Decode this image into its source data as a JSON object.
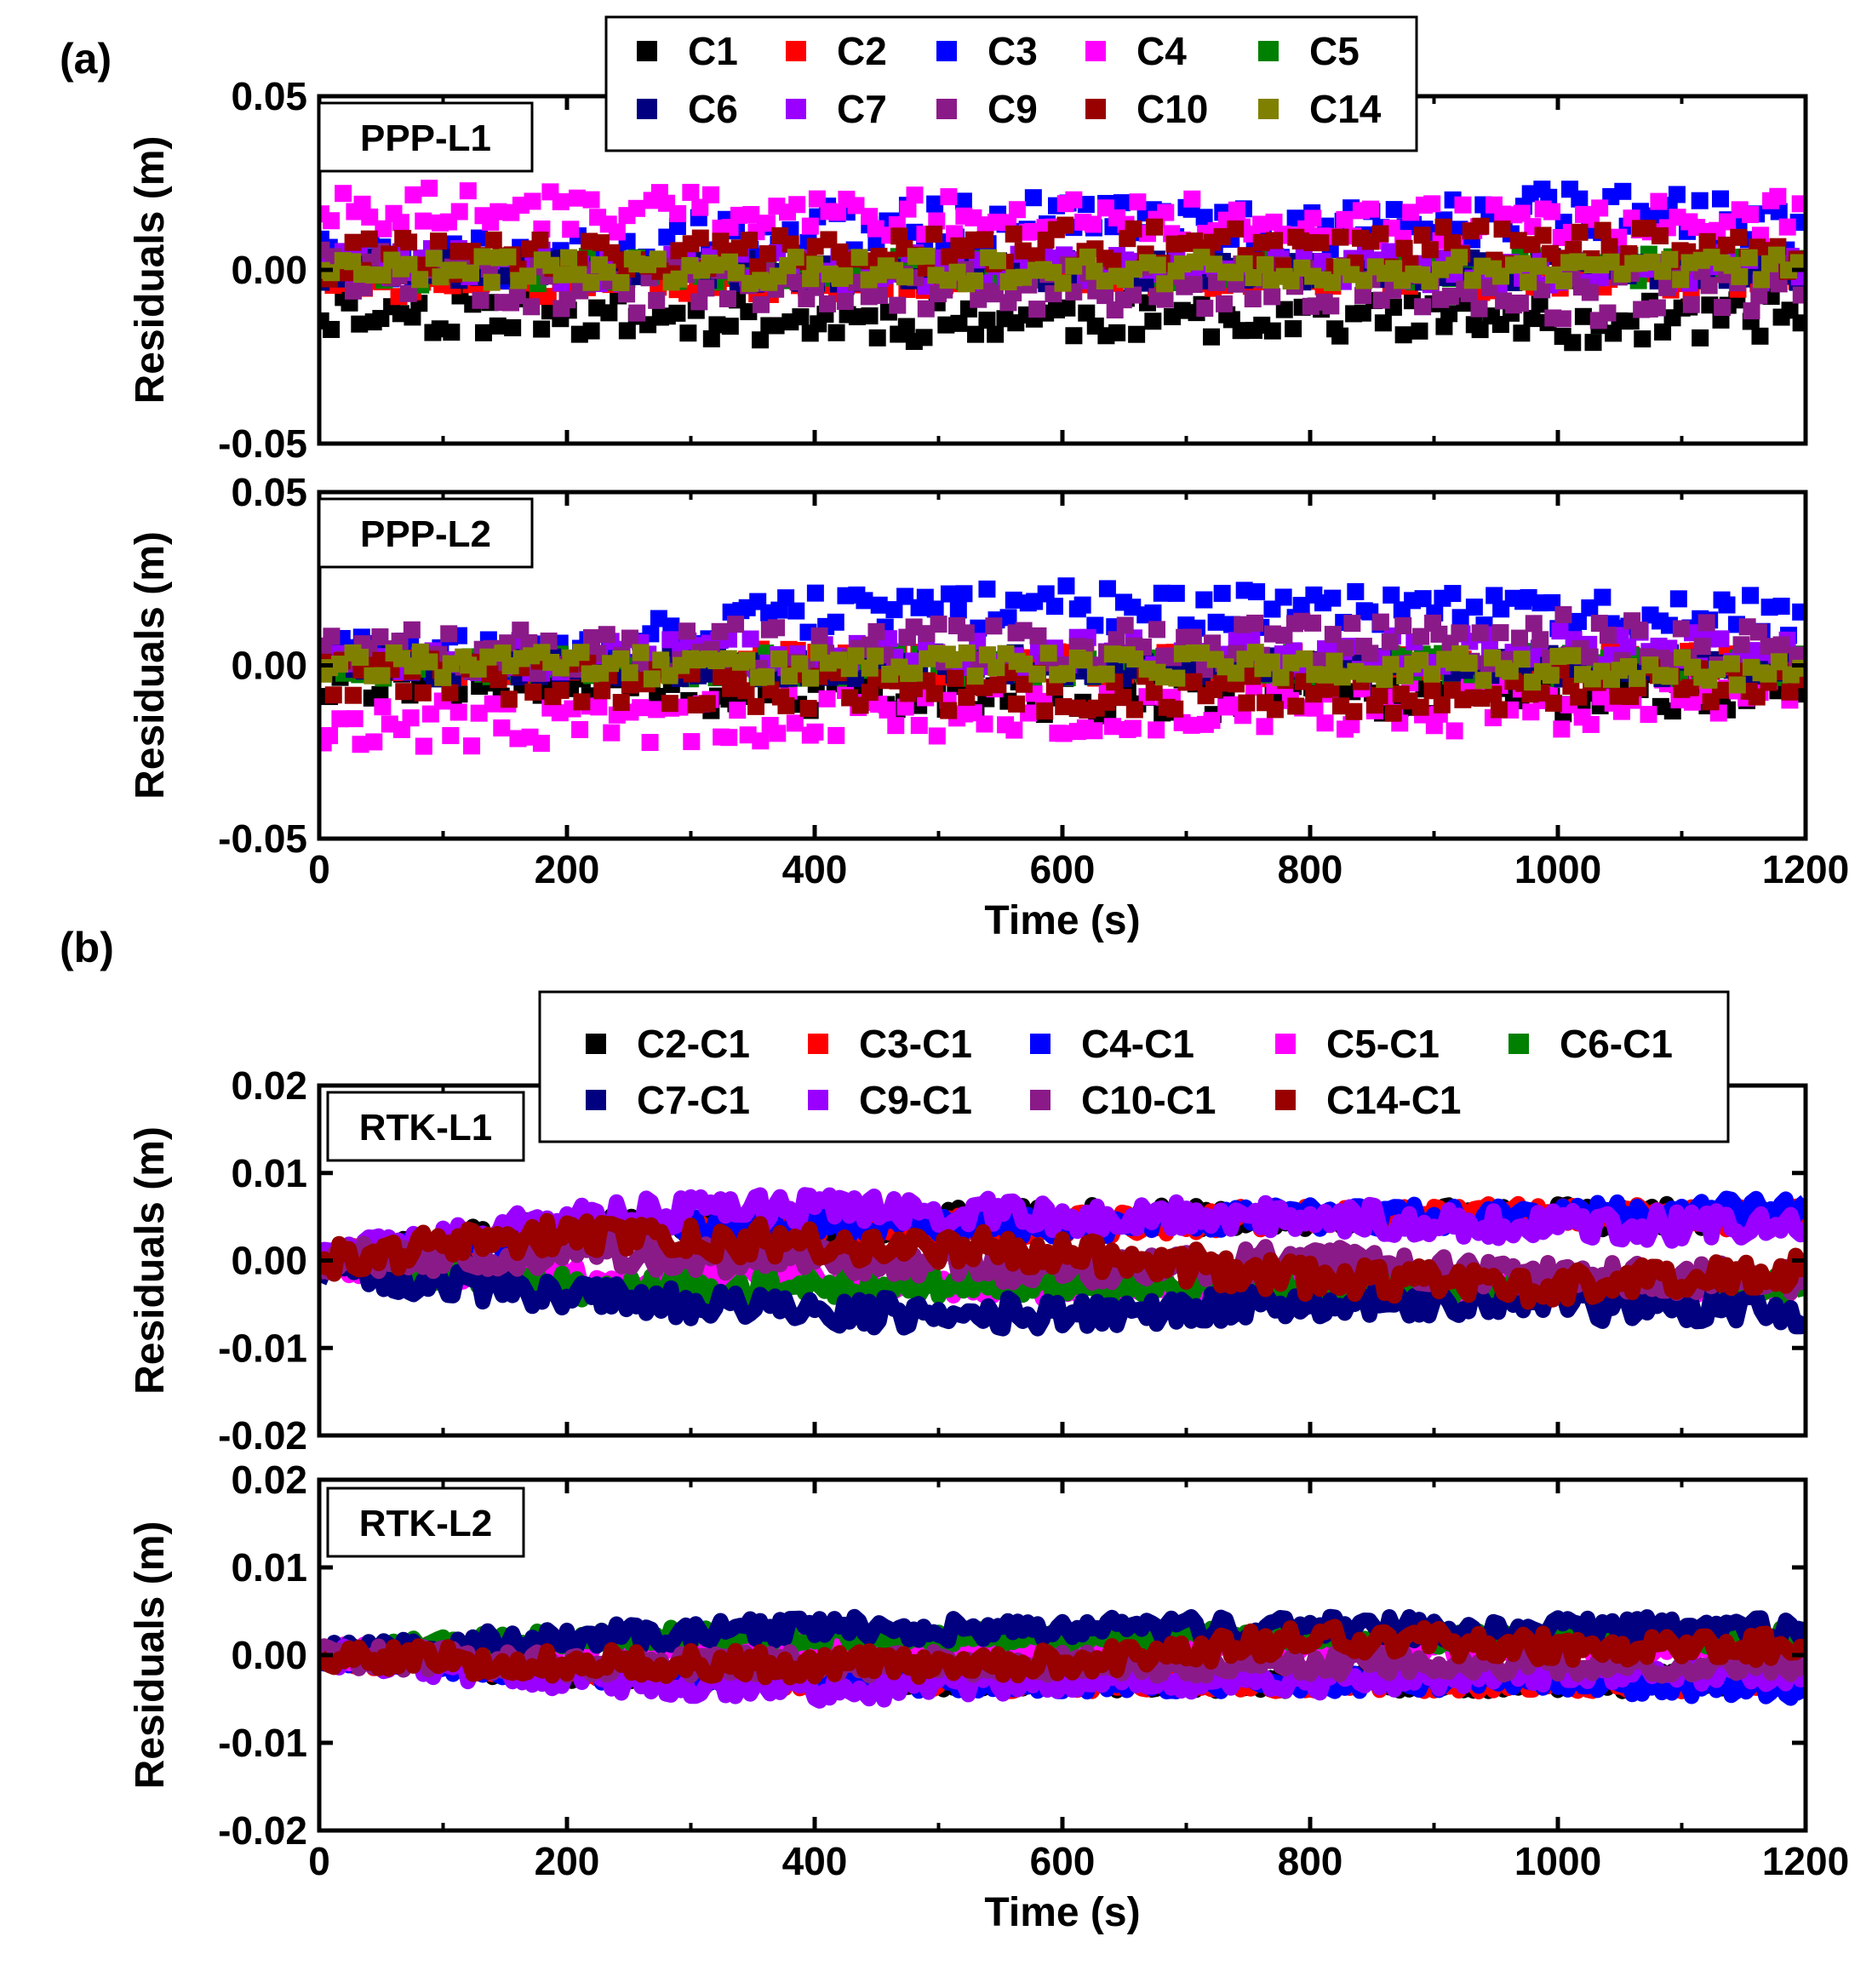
{
  "figure": {
    "panel_a_label": "(a)",
    "panel_b_label": "(b)"
  },
  "chart_data": [
    {
      "type": "scatter",
      "panel": "(a)",
      "title": "PPP-L1",
      "xlabel": "Time (s)",
      "ylabel": "Residuals (m)",
      "xlim": [
        0,
        1200
      ],
      "ylim": [
        -0.05,
        0.05
      ],
      "xticks": [
        "0",
        "200",
        "400",
        "600",
        "800",
        "1000",
        "1200"
      ],
      "yticks": [
        "-0.05",
        "0.00",
        "0.05"
      ],
      "show_xtick_labels": false,
      "legend": [
        "C1",
        "C2",
        "C3",
        "C4",
        "C5",
        "C6",
        "C7",
        "C9",
        "C10",
        "C14"
      ],
      "legend_position": "top-center",
      "series": [
        {
          "name": "C1",
          "color": "#000000",
          "x": [
            0,
            200,
            400,
            600,
            800,
            1000,
            1200
          ],
          "mean": [
            -0.012,
            -0.013,
            -0.015,
            -0.014,
            -0.013,
            -0.016,
            -0.013
          ],
          "spread": 0.006
        },
        {
          "name": "C2",
          "color": "#ff0000",
          "x": [
            0,
            200,
            400,
            600,
            800,
            1000,
            1200
          ],
          "mean": [
            -0.004,
            -0.004,
            -0.003,
            -0.002,
            -0.002,
            -0.003,
            -0.003
          ],
          "spread": 0.004
        },
        {
          "name": "C3",
          "color": "#0000ff",
          "x": [
            0,
            200,
            400,
            600,
            800,
            1000,
            1200
          ],
          "mean": [
            0.002,
            0.004,
            0.012,
            0.015,
            0.01,
            0.018,
            0.012
          ],
          "spread": 0.007
        },
        {
          "name": "C4",
          "color": "#ff00ff",
          "x": [
            0,
            200,
            400,
            600,
            800,
            1000,
            1200
          ],
          "mean": [
            0.018,
            0.017,
            0.016,
            0.015,
            0.014,
            0.013,
            0.016
          ],
          "spread": 0.006
        },
        {
          "name": "C5",
          "color": "#008000",
          "x": [
            0,
            200,
            400,
            600,
            800,
            1000,
            1200
          ],
          "mean": [
            -0.001,
            0.0,
            0.0,
            0.0,
            0.0,
            0.001,
            0.0
          ],
          "spread": 0.004
        },
        {
          "name": "C6",
          "color": "#000080",
          "x": [
            0,
            200,
            400,
            600,
            800,
            1000,
            1200
          ],
          "mean": [
            0.0,
            0.0,
            -0.001,
            0.0,
            0.0,
            0.0,
            0.0
          ],
          "spread": 0.004
        },
        {
          "name": "C7",
          "color": "#9900ff",
          "x": [
            0,
            200,
            400,
            600,
            800,
            1000,
            1200
          ],
          "mean": [
            0.002,
            0.001,
            0.0,
            0.0,
            0.001,
            0.0,
            0.001
          ],
          "spread": 0.005
        },
        {
          "name": "C9",
          "color": "#8b1a89",
          "x": [
            0,
            200,
            400,
            600,
            800,
            1000,
            1200
          ],
          "mean": [
            0.002,
            -0.006,
            -0.004,
            -0.005,
            -0.004,
            -0.009,
            -0.005
          ],
          "spread": 0.007
        },
        {
          "name": "C10",
          "color": "#990000",
          "x": [
            0,
            200,
            400,
            600,
            800,
            1000,
            1200
          ],
          "mean": [
            0.003,
            0.004,
            0.006,
            0.007,
            0.006,
            0.008,
            0.003
          ],
          "spread": 0.006
        },
        {
          "name": "C14",
          "color": "#808000",
          "x": [
            0,
            200,
            400,
            600,
            800,
            1000,
            1200
          ],
          "mean": [
            0.0,
            0.0,
            0.0,
            0.0,
            0.0,
            0.0,
            0.001
          ],
          "spread": 0.004
        }
      ]
    },
    {
      "type": "scatter",
      "panel": "(a)",
      "title": "PPP-L2",
      "xlabel": "Time (s)",
      "ylabel": "Residuals (m)",
      "xlim": [
        0,
        1200
      ],
      "ylim": [
        -0.05,
        0.05
      ],
      "xticks": [
        "0",
        "200",
        "400",
        "600",
        "800",
        "1000",
        "1200"
      ],
      "yticks": [
        "-0.05",
        "0.00",
        "0.05"
      ],
      "show_xtick_labels": true,
      "series": [
        {
          "name": "C1",
          "color": "#000000",
          "x": [
            0,
            200,
            400,
            600,
            800,
            1000,
            1200
          ],
          "mean": [
            -0.004,
            -0.006,
            -0.008,
            -0.009,
            -0.008,
            -0.009,
            -0.006
          ],
          "spread": 0.006
        },
        {
          "name": "C2",
          "color": "#ff0000",
          "x": [
            0,
            200,
            400,
            600,
            800,
            1000,
            1200
          ],
          "mean": [
            0.0,
            0.0,
            0.001,
            0.0,
            0.0,
            0.001,
            0.0
          ],
          "spread": 0.004
        },
        {
          "name": "C3",
          "color": "#0000ff",
          "x": [
            0,
            200,
            400,
            600,
            800,
            1000,
            1200
          ],
          "mean": [
            0.003,
            0.004,
            0.015,
            0.017,
            0.016,
            0.016,
            0.014
          ],
          "spread": 0.006
        },
        {
          "name": "C4",
          "color": "#ff00ff",
          "x": [
            0,
            200,
            400,
            600,
            800,
            1000,
            1200
          ],
          "mean": [
            -0.016,
            -0.018,
            -0.014,
            -0.013,
            -0.012,
            -0.012,
            -0.006
          ],
          "spread": 0.007
        },
        {
          "name": "C5",
          "color": "#008000",
          "x": [
            0,
            200,
            400,
            600,
            800,
            1000,
            1200
          ],
          "mean": [
            0.0,
            0.0,
            0.0,
            0.0,
            0.0,
            0.0,
            0.0
          ],
          "spread": 0.004
        },
        {
          "name": "C6",
          "color": "#000080",
          "x": [
            0,
            200,
            400,
            600,
            800,
            1000,
            1200
          ],
          "mean": [
            0.0,
            0.0,
            0.0,
            0.0,
            0.0,
            0.0,
            0.0
          ],
          "spread": 0.004
        },
        {
          "name": "C7",
          "color": "#9900ff",
          "x": [
            0,
            200,
            400,
            600,
            800,
            1000,
            1200
          ],
          "mean": [
            0.003,
            0.002,
            0.004,
            0.004,
            0.003,
            0.005,
            0.004
          ],
          "spread": 0.005
        },
        {
          "name": "C9",
          "color": "#8b1a89",
          "x": [
            0,
            200,
            400,
            600,
            800,
            1000,
            1200
          ],
          "mean": [
            0.006,
            0.004,
            0.006,
            0.005,
            0.006,
            0.008,
            0.005
          ],
          "spread": 0.007
        },
        {
          "name": "C10",
          "color": "#990000",
          "x": [
            0,
            200,
            400,
            600,
            800,
            1000,
            1200
          ],
          "mean": [
            -0.003,
            -0.005,
            -0.007,
            -0.008,
            -0.009,
            -0.007,
            -0.004
          ],
          "spread": 0.006
        },
        {
          "name": "C14",
          "color": "#808000",
          "x": [
            0,
            200,
            400,
            600,
            800,
            1000,
            1200
          ],
          "mean": [
            0.0,
            0.0,
            0.0,
            0.0,
            0.0,
            -0.001,
            -0.002
          ],
          "spread": 0.004
        }
      ]
    },
    {
      "type": "line",
      "panel": "(b)",
      "title": "RTK-L1",
      "xlabel": "Time (s)",
      "ylabel": "Residuals (m)",
      "xlim": [
        0,
        1200
      ],
      "ylim": [
        -0.02,
        0.02
      ],
      "xticks": [
        "0",
        "200",
        "400",
        "600",
        "800",
        "1000",
        "1200"
      ],
      "yticks": [
        "-0.02",
        "-0.01",
        "0.00",
        "0.01",
        "0.02"
      ],
      "show_xtick_labels": false,
      "legend": [
        "C2-C1",
        "C3-C1",
        "C4-C1",
        "C5-C1",
        "C6-C1",
        "C7-C1",
        "C9-C1",
        "C10-C1",
        "C14-C1"
      ],
      "legend_position": "top-center",
      "series": [
        {
          "name": "C2-C1",
          "color": "#000000",
          "x": [
            0,
            200,
            400,
            600,
            800,
            1000,
            1200
          ],
          "mean": [
            0.0,
            0.004,
            0.004,
            0.005,
            0.005,
            0.005,
            0.005
          ],
          "spread": 0.0015
        },
        {
          "name": "C3-C1",
          "color": "#ff0000",
          "x": [
            0,
            200,
            400,
            600,
            800,
            1000,
            1200
          ],
          "mean": [
            0.0,
            0.003,
            0.004,
            0.004,
            0.005,
            0.005,
            0.005
          ],
          "spread": 0.0015
        },
        {
          "name": "C4-C1",
          "color": "#0000ff",
          "x": [
            0,
            200,
            400,
            600,
            800,
            1000,
            1200
          ],
          "mean": [
            0.0,
            0.003,
            0.004,
            0.004,
            0.005,
            0.005,
            0.006
          ],
          "spread": 0.0015
        },
        {
          "name": "C5-C1",
          "color": "#ff00ff",
          "x": [
            0,
            200,
            400,
            600,
            800,
            1000,
            1200
          ],
          "mean": [
            0.0,
            -0.002,
            -0.002,
            -0.003,
            -0.003,
            -0.003,
            -0.003
          ],
          "spread": 0.0015
        },
        {
          "name": "C6-C1",
          "color": "#008000",
          "x": [
            0,
            200,
            400,
            600,
            800,
            1000,
            1200
          ],
          "mean": [
            0.0,
            -0.003,
            -0.003,
            -0.003,
            -0.003,
            -0.003,
            -0.003
          ],
          "spread": 0.0015
        },
        {
          "name": "C7-C1",
          "color": "#000080",
          "x": [
            0,
            200,
            400,
            600,
            800,
            1000,
            1200
          ],
          "mean": [
            -0.001,
            -0.004,
            -0.006,
            -0.006,
            -0.005,
            -0.005,
            -0.006
          ],
          "spread": 0.0018
        },
        {
          "name": "C9-C1",
          "color": "#9900ff",
          "x": [
            0,
            200,
            400,
            600,
            800,
            1000,
            1200
          ],
          "mean": [
            0.0,
            0.005,
            0.006,
            0.005,
            0.005,
            0.004,
            0.004
          ],
          "spread": 0.0018
        },
        {
          "name": "C10-C1",
          "color": "#8b1a89",
          "x": [
            0,
            200,
            400,
            600,
            800,
            1000,
            1200
          ],
          "mean": [
            0.0,
            0.001,
            0.0,
            -0.001,
            0.0,
            -0.002,
            -0.002
          ],
          "spread": 0.0018
        },
        {
          "name": "C14-C1",
          "color": "#990000",
          "x": [
            0,
            200,
            400,
            600,
            800,
            1000,
            1200
          ],
          "mean": [
            0.0,
            0.003,
            0.002,
            0.001,
            -0.002,
            -0.003,
            -0.001
          ],
          "spread": 0.002
        }
      ]
    },
    {
      "type": "line",
      "panel": "(b)",
      "title": "RTK-L2",
      "xlabel": "Time (s)",
      "ylabel": "Residuals (m)",
      "xlim": [
        0,
        1200
      ],
      "ylim": [
        -0.02,
        0.02
      ],
      "xticks": [
        "0",
        "200",
        "400",
        "600",
        "800",
        "1000",
        "1200"
      ],
      "yticks": [
        "-0.02",
        "-0.01",
        "0.00",
        "0.01",
        "0.02"
      ],
      "show_xtick_labels": true,
      "series": [
        {
          "name": "C2-C1",
          "color": "#000000",
          "x": [
            0,
            200,
            400,
            600,
            800,
            1000,
            1200
          ],
          "mean": [
            0.0,
            -0.002,
            -0.003,
            -0.003,
            -0.003,
            -0.003,
            -0.003
          ],
          "spread": 0.0012
        },
        {
          "name": "C3-C1",
          "color": "#ff0000",
          "x": [
            0,
            200,
            400,
            600,
            800,
            1000,
            1200
          ],
          "mean": [
            0.0,
            -0.002,
            -0.003,
            -0.003,
            -0.003,
            -0.003,
            -0.003
          ],
          "spread": 0.0012
        },
        {
          "name": "C4-C1",
          "color": "#0000ff",
          "x": [
            0,
            200,
            400,
            600,
            800,
            1000,
            1200
          ],
          "mean": [
            0.0,
            -0.002,
            -0.003,
            -0.003,
            -0.003,
            -0.003,
            -0.004
          ],
          "spread": 0.0012
        },
        {
          "name": "C5-C1",
          "color": "#ff00ff",
          "x": [
            0,
            200,
            400,
            600,
            800,
            1000,
            1200
          ],
          "mean": [
            0.0,
            0.001,
            0.001,
            0.001,
            0.001,
            0.001,
            0.001
          ],
          "spread": 0.0012
        },
        {
          "name": "C6-C1",
          "color": "#008000",
          "x": [
            0,
            200,
            400,
            600,
            800,
            1000,
            1200
          ],
          "mean": [
            0.0,
            0.002,
            0.002,
            0.002,
            0.002,
            0.002,
            0.002
          ],
          "spread": 0.0012
        },
        {
          "name": "C7-C1",
          "color": "#000080",
          "x": [
            0,
            200,
            400,
            600,
            800,
            1000,
            1200
          ],
          "mean": [
            0.0,
            0.002,
            0.003,
            0.003,
            0.003,
            0.003,
            0.003
          ],
          "spread": 0.0014
        },
        {
          "name": "C9-C1",
          "color": "#9900ff",
          "x": [
            0,
            200,
            400,
            600,
            800,
            1000,
            1200
          ],
          "mean": [
            0.0,
            -0.003,
            -0.004,
            -0.003,
            -0.003,
            -0.002,
            -0.002
          ],
          "spread": 0.0014
        },
        {
          "name": "C10-C1",
          "color": "#8b1a89",
          "x": [
            0,
            200,
            400,
            600,
            800,
            1000,
            1200
          ],
          "mean": [
            0.0,
            -0.001,
            -0.001,
            -0.001,
            -0.001,
            -0.001,
            -0.001
          ],
          "spread": 0.0014
        },
        {
          "name": "C14-C1",
          "color": "#990000",
          "x": [
            0,
            200,
            400,
            600,
            800,
            1000,
            1200
          ],
          "mean": [
            0.0,
            -0.001,
            -0.001,
            -0.001,
            0.002,
            0.001,
            0.001
          ],
          "spread": 0.0016
        }
      ]
    }
  ]
}
